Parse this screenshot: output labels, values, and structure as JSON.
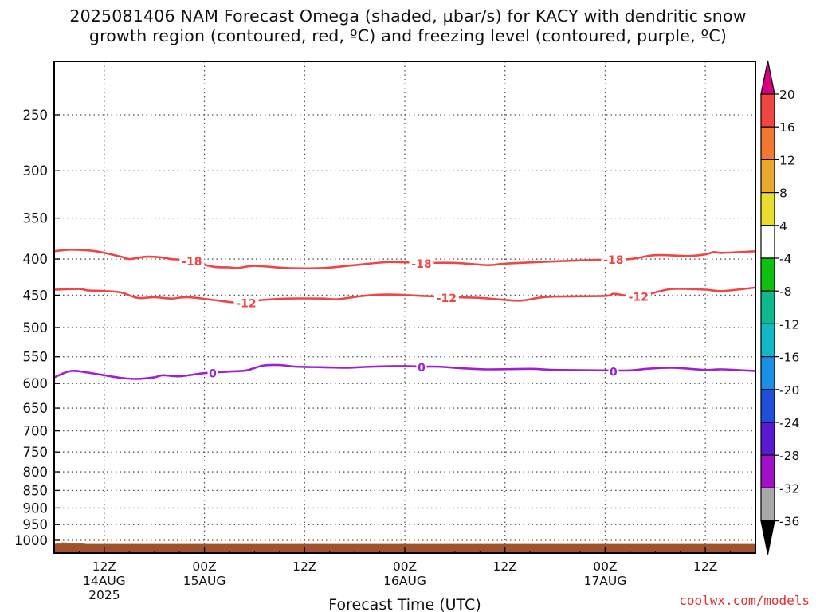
{
  "title": {
    "line1": "2025081406 NAM Forecast Omega (shaded, μbar/s) for KACY with dendritic snow",
    "line2": "growth region (contoured, red, ºC) and freezing level (contoured, purple, ºC)"
  },
  "credit": "coolwx.com/models",
  "chart_data": {
    "type": "line",
    "xlabel": "Forecast Time (UTC)",
    "x_ticks": [
      {
        "hour": 6,
        "label": [
          "12Z",
          "14AUG",
          "2025"
        ]
      },
      {
        "hour": 18,
        "label": [
          "00Z",
          "15AUG"
        ]
      },
      {
        "hour": 30,
        "label": [
          "12Z"
        ]
      },
      {
        "hour": 42,
        "label": [
          "00Z",
          "16AUG"
        ]
      },
      {
        "hour": 54,
        "label": [
          "12Z"
        ]
      },
      {
        "hour": 66,
        "label": [
          "00Z",
          "17AUG"
        ]
      },
      {
        "hour": 78,
        "label": [
          "12Z"
        ]
      }
    ],
    "xlim_hours": [
      0,
      84
    ],
    "y_ticks": [
      250,
      300,
      350,
      400,
      450,
      500,
      550,
      600,
      650,
      700,
      750,
      800,
      850,
      900,
      950,
      1000
    ],
    "ylim_hPa": [
      200,
      1025
    ],
    "y_scale": "log-pressure (inverted)",
    "grid": "dotted",
    "terrain_color": "#a0522d",
    "series": [
      {
        "label": "-18",
        "color": "#f04545",
        "points": [
          [
            0,
            390
          ],
          [
            2,
            388
          ],
          [
            5,
            390
          ],
          [
            8,
            397
          ],
          [
            9,
            400
          ],
          [
            11,
            397
          ],
          [
            13,
            398
          ],
          [
            14,
            400
          ],
          [
            16,
            402
          ],
          [
            19,
            410
          ],
          [
            21,
            411
          ],
          [
            22,
            412
          ],
          [
            24,
            409
          ],
          [
            28,
            412
          ],
          [
            32,
            412
          ],
          [
            36,
            408
          ],
          [
            40,
            404
          ],
          [
            44,
            405
          ],
          [
            48,
            405
          ],
          [
            52,
            408
          ],
          [
            54,
            406
          ],
          [
            60,
            403
          ],
          [
            65,
            401
          ],
          [
            69,
            400
          ],
          [
            72,
            395
          ],
          [
            76,
            396
          ],
          [
            78,
            394
          ],
          [
            79,
            391
          ],
          [
            80,
            392
          ],
          [
            84,
            390
          ]
        ],
        "label_positions": [
          [
            16.5,
            402
          ],
          [
            44,
            405
          ],
          [
            67,
            400
          ]
        ]
      },
      {
        "label": "-12",
        "color": "#f04545",
        "points": [
          [
            0,
            442
          ],
          [
            3,
            441
          ],
          [
            4,
            443
          ],
          [
            6,
            444
          ],
          [
            8,
            446
          ],
          [
            10,
            454
          ],
          [
            12,
            453
          ],
          [
            14,
            455
          ],
          [
            16,
            453
          ],
          [
            19,
            457
          ],
          [
            22,
            461
          ],
          [
            25,
            457
          ],
          [
            28,
            455
          ],
          [
            32,
            455
          ],
          [
            34,
            456
          ],
          [
            37,
            451
          ],
          [
            40,
            449
          ],
          [
            44,
            451
          ],
          [
            48,
            453
          ],
          [
            51,
            454
          ],
          [
            54,
            457
          ],
          [
            56,
            458
          ],
          [
            58,
            454
          ],
          [
            60,
            452
          ],
          [
            66,
            451
          ],
          [
            67,
            448
          ],
          [
            69,
            451
          ],
          [
            71,
            449
          ],
          [
            74,
            441
          ],
          [
            78,
            442
          ],
          [
            80,
            444
          ],
          [
            84,
            439
          ]
        ],
        "label_positions": [
          [
            23,
            461
          ],
          [
            47,
            453
          ],
          [
            70,
            451
          ]
        ]
      },
      {
        "label": "0",
        "color": "#a020d0",
        "points": [
          [
            0,
            588
          ],
          [
            2,
            576
          ],
          [
            4,
            579
          ],
          [
            8,
            589
          ],
          [
            10,
            591
          ],
          [
            12,
            588
          ],
          [
            13,
            584
          ],
          [
            15,
            586
          ],
          [
            18,
            580
          ],
          [
            21,
            577
          ],
          [
            23,
            575
          ],
          [
            25,
            566
          ],
          [
            27,
            565
          ],
          [
            29,
            568
          ],
          [
            32,
            569
          ],
          [
            35,
            570
          ],
          [
            38,
            568
          ],
          [
            42,
            567
          ],
          [
            44,
            568
          ],
          [
            46,
            568
          ],
          [
            49,
            571
          ],
          [
            52,
            573
          ],
          [
            57,
            572
          ],
          [
            60,
            574
          ],
          [
            66,
            575
          ],
          [
            69,
            575
          ],
          [
            71,
            572
          ],
          [
            74,
            570
          ],
          [
            78,
            574
          ],
          [
            80,
            573
          ],
          [
            84,
            576
          ]
        ],
        "label_positions": [
          [
            19,
            579
          ],
          [
            44,
            568
          ],
          [
            67,
            576
          ]
        ]
      }
    ],
    "colorbar": {
      "labels": [
        "20",
        "16",
        "12",
        "8",
        "4",
        "-4",
        "-8",
        "-12",
        "-16",
        "-20",
        "-24",
        "-28",
        "-32",
        "-36"
      ],
      "colors": [
        "#d80080",
        "#f04540",
        "#f07830",
        "#e8a830",
        "#e8dc30",
        "#ffffff",
        "#10c010",
        "#10b890",
        "#10b8c8",
        "#1890e8",
        "#1e4fd8",
        "#5a18d0",
        "#a010c8",
        "#a8a8a8",
        "#000000"
      ]
    }
  }
}
